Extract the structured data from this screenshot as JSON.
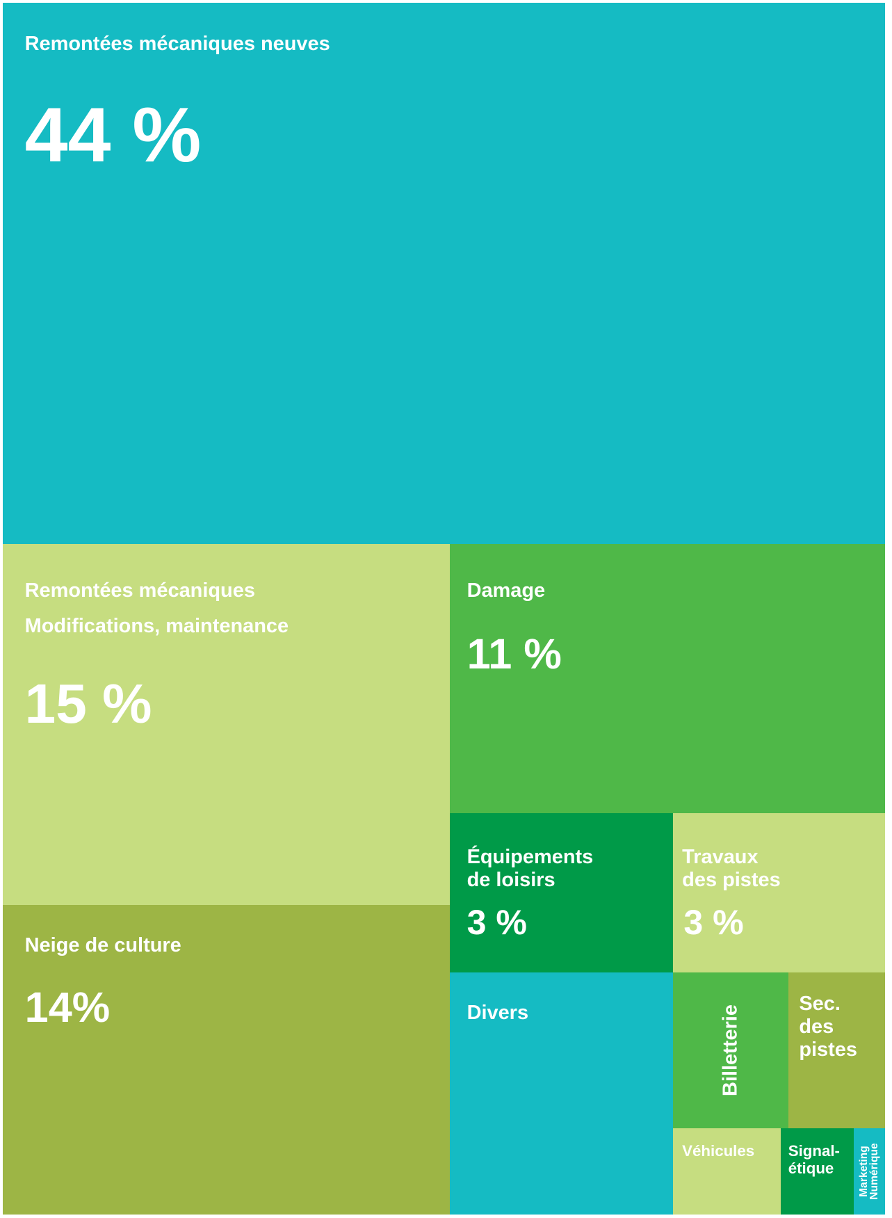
{
  "chart_data": {
    "type": "treemap",
    "categories": [
      "Remontées mécaniques neuves",
      "Remontées mécaniques\nModifications, maintenance",
      "Neige de culture",
      "Damage",
      "Équipements\nde loisirs",
      "Travaux\ndes pistes",
      "Divers",
      "Billetterie",
      "Sec.\ndes\npistes",
      "Véhicules",
      "Signal-\nétique",
      "Marketing\nNumérique"
    ],
    "values": [
      44,
      15,
      14,
      11,
      3,
      3,
      5,
      1.7,
      1.4,
      0.9,
      0.6,
      0.25
    ],
    "value_labels": [
      "44 %",
      "15 %",
      "14%",
      "11 %",
      "3 %",
      "3 %",
      null,
      null,
      null,
      null,
      null,
      null
    ],
    "colors": [
      "#15bbc3",
      "#c6dd80",
      "#9db545",
      "#4fb848",
      "#009a48",
      "#c6dd80",
      "#15bbc3",
      "#4fb848",
      "#9db545",
      "#c6dd80",
      "#009a48",
      "#15bbc3"
    ]
  }
}
